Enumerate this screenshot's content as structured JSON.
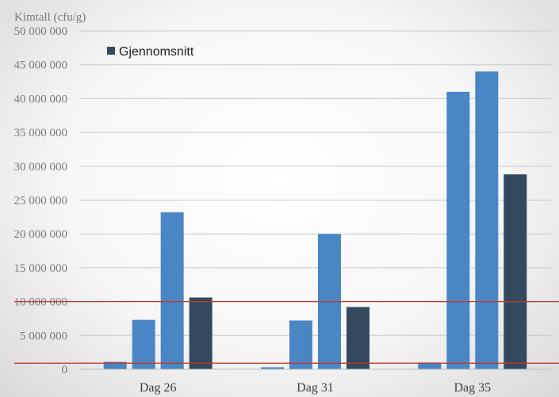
{
  "chart_data": {
    "type": "bar",
    "title": "",
    "ylabel": "Kimtall (cfu/g)",
    "xlabel": "",
    "ylim": [
      0,
      50000000
    ],
    "y_tick_step": 5000000,
    "y_tick_labels": [
      "0",
      "5 000 000",
      "10 000 000",
      "15 000 000",
      "20 000 000",
      "25 000 000",
      "30 000 000",
      "35 000 000",
      "40 000 000",
      "45 000 000",
      "50 000 000"
    ],
    "categories": [
      "Dag 26",
      "Dag 31",
      "Dag 35"
    ],
    "bars_per_category": [
      [
        {
          "value": 1100000,
          "kind": "sample"
        },
        {
          "value": 7300000,
          "kind": "sample"
        },
        {
          "value": 23200000,
          "kind": "sample"
        },
        {
          "value": 10600000,
          "kind": "average"
        }
      ],
      [
        {
          "value": 300000,
          "kind": "sample"
        },
        {
          "value": 7200000,
          "kind": "sample"
        },
        {
          "value": 20000000,
          "kind": "sample"
        },
        {
          "value": 9200000,
          "kind": "average"
        }
      ],
      [
        {
          "value": 1000000,
          "kind": "sample"
        },
        {
          "value": 41000000,
          "kind": "sample"
        },
        {
          "value": 44000000,
          "kind": "sample"
        },
        {
          "value": 28800000,
          "kind": "average"
        }
      ]
    ],
    "reference_lines": [
      {
        "value": 10000000,
        "color": "#c0392b"
      },
      {
        "value": 900000,
        "color": "#c0392b"
      }
    ],
    "grid": true,
    "legend": {
      "placement": "top-left",
      "entries": [
        {
          "name": "Gjennomsnitt",
          "color": "#34495e"
        }
      ]
    }
  },
  "colors": {
    "sample": "#4a86c4",
    "average": "#34495e",
    "grid": "#c8c8c8",
    "reference": "#c0392b"
  }
}
